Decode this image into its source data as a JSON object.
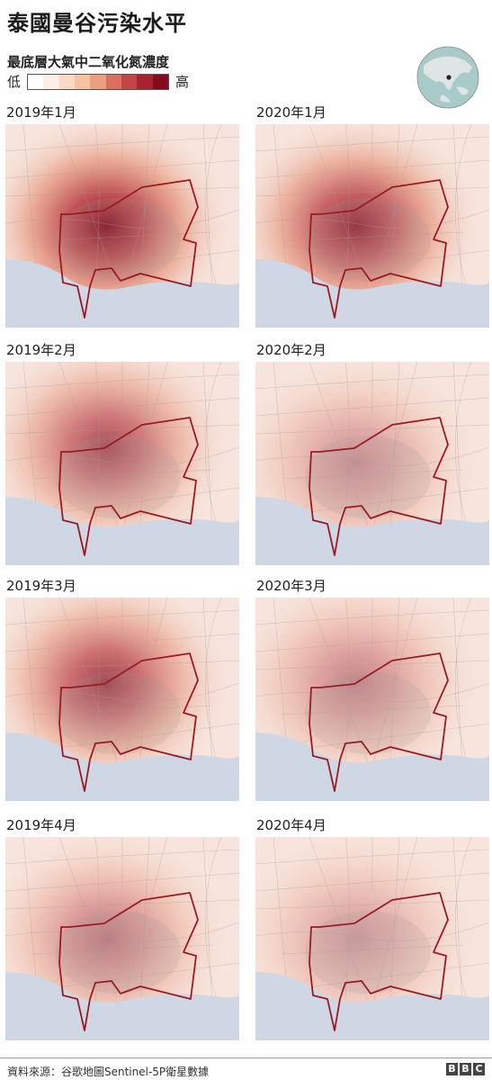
{
  "title": "泰國曼谷污染水平",
  "legend": {
    "title": "最底層大氣中二氧化氮濃度",
    "low_label": "低",
    "high_label": "高",
    "colors": [
      "#ffffff",
      "#fdeee6",
      "#fad9c6",
      "#f5c3a2",
      "#ec9f7f",
      "#db6e5c",
      "#c44448",
      "#a82232",
      "#860a1d"
    ]
  },
  "locator_globe": {
    "land_color": "#dfe4e4",
    "sea_color": "#a8cbca",
    "marker": "dot"
  },
  "panels": [
    {
      "label": "2019年1月",
      "intensity": 1.0,
      "hotspot": "center"
    },
    {
      "label": "2020年1月",
      "intensity": 0.9,
      "hotspot": "center"
    },
    {
      "label": "2019年2月",
      "intensity": 0.72,
      "hotspot": "north"
    },
    {
      "label": "2020年2月",
      "intensity": 0.4,
      "hotspot": "center"
    },
    {
      "label": "2019年3月",
      "intensity": 0.78,
      "hotspot": "north"
    },
    {
      "label": "2020年3月",
      "intensity": 0.45,
      "hotspot": "north"
    },
    {
      "label": "2019年4月",
      "intensity": 0.5,
      "hotspot": "center"
    },
    {
      "label": "2020年4月",
      "intensity": 0.35,
      "hotspot": "center"
    }
  ],
  "colors": {
    "boundary": "#9b1b23",
    "sea": "#cfd6e4",
    "background": "#f7e4dc",
    "road": "#a0a0a0",
    "urban": "#9a9a9a"
  },
  "footer": {
    "source": "資料來源：谷歌地圖Sentinel-5P衛星數據",
    "logo_letters": [
      "B",
      "B",
      "C"
    ]
  }
}
